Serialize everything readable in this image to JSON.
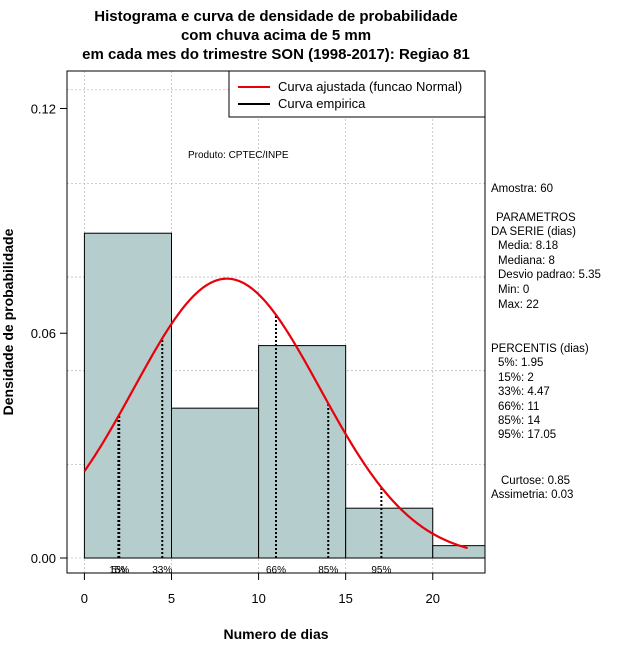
{
  "chart_data": {
    "type": "histogram",
    "title_lines": [
      "Histograma e curva de densidade de probabilidade",
      "com chuva acima de 5 mm",
      "em cada mes do trimestre SON (1998-2017): Regiao 81"
    ],
    "xlabel": "Numero de dias",
    "ylabel": "Densidade de probabilidade",
    "xlim": [
      -1,
      23
    ],
    "ylim": [
      -0.004,
      0.13
    ],
    "x_ticks": [
      0,
      5,
      10,
      15,
      20
    ],
    "y_ticks": [
      0.0,
      0.06,
      0.12
    ],
    "y_tick_labels": [
      "0.00",
      "0.06",
      "0.12"
    ],
    "grid": true,
    "bins": [
      {
        "from": 0,
        "to": 5,
        "density": 0.0867
      },
      {
        "from": 5,
        "to": 10,
        "density": 0.04
      },
      {
        "from": 10,
        "to": 15,
        "density": 0.0567
      },
      {
        "from": 15,
        "to": 20,
        "density": 0.0133
      },
      {
        "from": 20,
        "to": 23,
        "density": 0.0033
      }
    ],
    "normal_fit": {
      "mean": 8.18,
      "sd": 5.35,
      "x_from": 0,
      "x_to": 22
    },
    "percentiles": [
      {
        "label": "5%",
        "x": 1.95
      },
      {
        "label": "15%",
        "x": 2
      },
      {
        "label": "33%",
        "x": 4.47
      },
      {
        "label": "66%",
        "x": 11
      },
      {
        "label": "85%",
        "x": 14
      },
      {
        "label": "95%",
        "x": 17.05
      }
    ],
    "legend": {
      "position": "top-right",
      "entries": [
        {
          "label": "Curva ajustada (funcao Normal)",
          "color": "#e8000b"
        },
        {
          "label": "Curva empirica",
          "color": "#000000"
        }
      ]
    },
    "colors": {
      "bar_fill": "#b5cdcd",
      "curve": "#e8000b",
      "grid": "#bebebe"
    }
  },
  "annotations": {
    "produto": "Produto: CPTEC/INPE",
    "amostra": "Amostra: 60",
    "param_header_1": "PARAMETROS",
    "param_header_2": "DA SERIE (dias)",
    "media": "Media: 8.18",
    "mediana": "Mediana: 8",
    "desvio": "Desvio padrao: 5.35",
    "min": "Min: 0",
    "max": "Max: 22",
    "percentis_header": "PERCENTIS (dias)",
    "p5": "5%: 1.95",
    "p15": "15%: 2",
    "p33": "33%: 4.47",
    "p66": "66%: 11",
    "p85": "85%: 14",
    "p95": "95%: 17.05",
    "curtose": "Curtose: 0.85",
    "assimetria": "Assimetria: 0.03"
  }
}
